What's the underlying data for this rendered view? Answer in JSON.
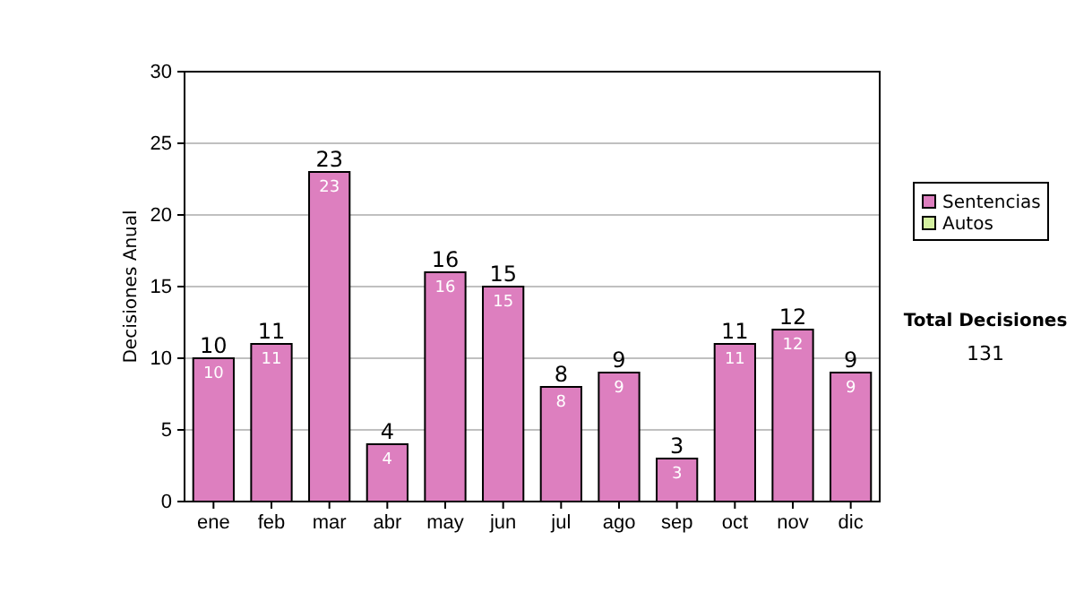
{
  "chart_data": {
    "type": "bar",
    "ylabel": "Decisiones Anual",
    "categories": [
      "ene",
      "feb",
      "mar",
      "abr",
      "may",
      "jun",
      "jul",
      "ago",
      "sep",
      "oct",
      "nov",
      "dic"
    ],
    "series": [
      {
        "name": "Sentencias",
        "color": "#dd7fbf",
        "values": [
          10,
          11,
          23,
          4,
          16,
          15,
          8,
          9,
          3,
          11,
          12,
          9
        ]
      },
      {
        "name": "Autos",
        "color": "#d4f0a0",
        "values": [
          null,
          null,
          null,
          null,
          null,
          null,
          null,
          null,
          null,
          null,
          null,
          null
        ]
      }
    ],
    "stacked": true,
    "data_labels": true,
    "totals": [
      "10",
      "11",
      "23",
      "4",
      "16",
      "15",
      "8",
      "9",
      "3",
      "11",
      "12",
      "9"
    ],
    "ylim": [
      0,
      30
    ],
    "yticks": [
      0,
      5,
      10,
      15,
      20,
      25,
      30
    ],
    "grid": "y",
    "legend": "right",
    "annotations": [
      "Total Decisiones",
      "131"
    ]
  }
}
